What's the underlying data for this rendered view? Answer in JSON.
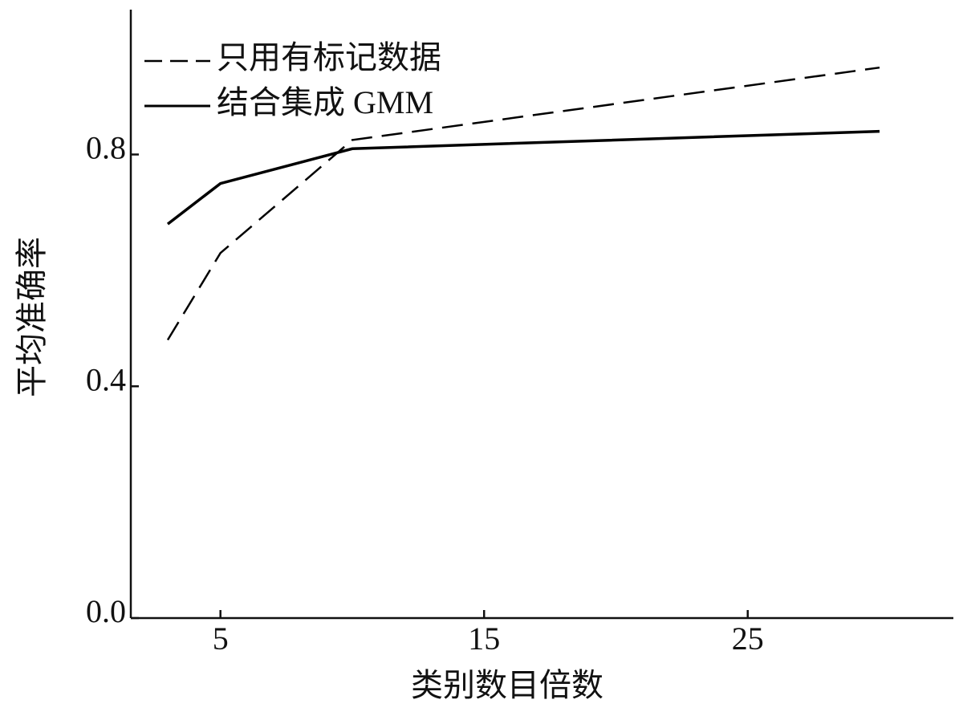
{
  "chart_data": {
    "type": "line",
    "x_label": "类别数目倍数",
    "y_label": "平均准确率",
    "x": [
      3,
      5,
      10,
      30
    ],
    "series": [
      {
        "name": "只用有标记数据",
        "color": "#000000",
        "dash": "dashed",
        "values": [
          0.48,
          0.63,
          0.825,
          0.95
        ]
      },
      {
        "name": "结合集成 GMM",
        "color": "#000000",
        "dash": "solid",
        "values": [
          0.68,
          0.75,
          0.81,
          0.84
        ]
      }
    ],
    "xlim": [
      1.6,
      32.8
    ],
    "xticks": [
      5,
      15,
      25
    ],
    "ylim": [
      0,
      1.05
    ],
    "yticks": [
      {
        "value": 0,
        "label": "0.0"
      },
      {
        "value": 0.4,
        "label": "0.4"
      },
      {
        "value": 0.8,
        "label": "0.8"
      }
    ],
    "grid": false,
    "legend": "upper left"
  }
}
